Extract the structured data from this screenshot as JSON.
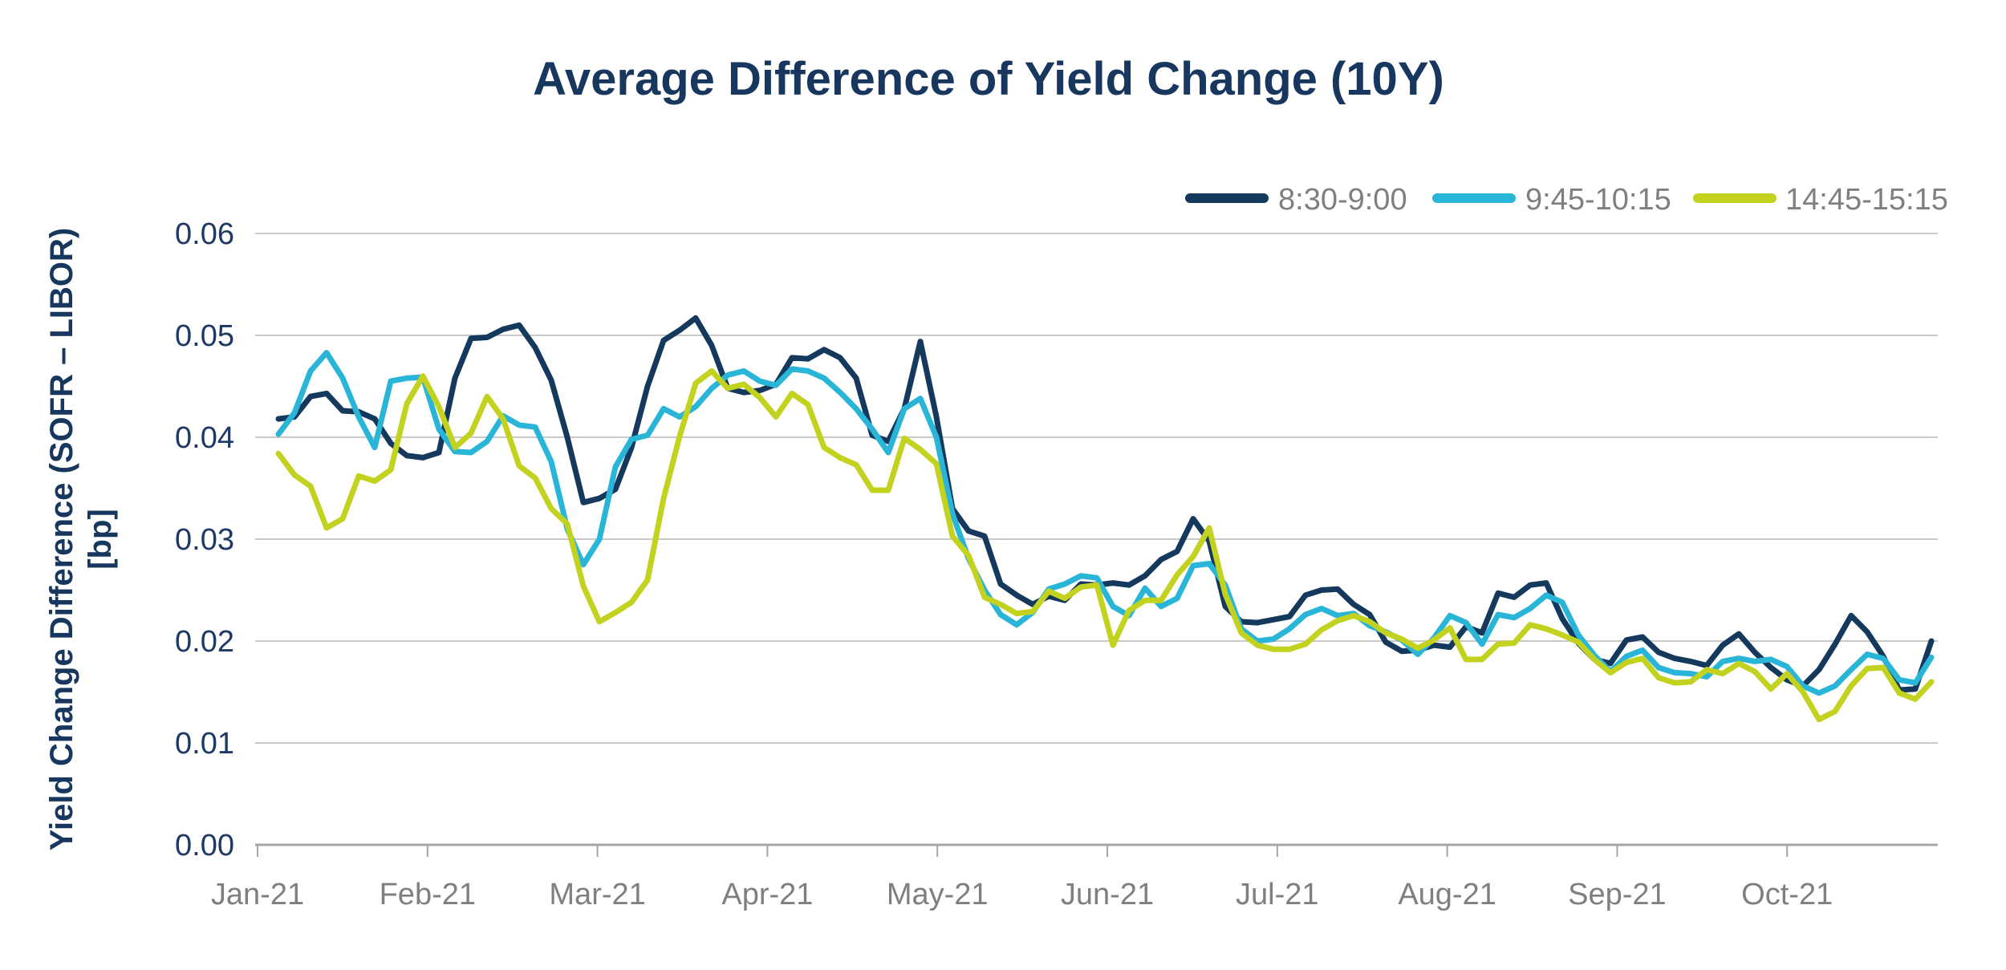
{
  "title": "Average Difference of Yield Change (10Y)",
  "y_axis": {
    "label_line1": "Yield Change Difference (SOFR – LIBOR)",
    "label_line2": "[bp]",
    "tick_labels": [
      "0.06",
      "0.05",
      "0.04",
      "0.03",
      "0.02",
      "0.01",
      "0.00"
    ]
  },
  "x_axis": {
    "tick_labels": [
      "Jan-21",
      "Feb-21",
      "Mar-21",
      "Apr-21",
      "May-21",
      "Jun-21",
      "Jul-21",
      "Aug-21",
      "Sep-21",
      "Oct-21"
    ]
  },
  "colors": {
    "title": "#17375E",
    "y_tick": "#1F3864",
    "x_tick": "#7F7F7F",
    "legend_text": "#7F7F7F",
    "gridline": "#C9C9C9",
    "axis_line": "#A6A6A6",
    "background": "#FFFFFF"
  },
  "chart_data": {
    "type": "line",
    "title": "Average Difference of Yield Change (10Y)",
    "xlabel": "",
    "ylabel": "Yield Change Difference (SOFR – LIBOR) [bp]",
    "ylim": [
      0,
      0.06
    ],
    "ytick_step": 0.01,
    "grid": "horizontal",
    "legend_position": "top-right",
    "categories": [
      "Jan-21",
      "Feb-21",
      "Mar-21",
      "Apr-21",
      "May-21",
      "Jun-21",
      "Jul-21",
      "Aug-21",
      "Sep-21",
      "Oct-21"
    ],
    "series": [
      {
        "name": "8:30-9:00",
        "color": "#14395D",
        "values": [
          0.0418,
          0.042,
          0.044,
          0.0443,
          0.0426,
          0.0425,
          0.0418,
          0.0394,
          0.0382,
          0.038,
          0.0385,
          0.0458,
          0.0497,
          0.0498,
          0.0506,
          0.051,
          0.0488,
          0.0456,
          0.04,
          0.0336,
          0.034,
          0.0349,
          0.039,
          0.045,
          0.0495,
          0.0505,
          0.0517,
          0.049,
          0.0448,
          0.0444,
          0.0446,
          0.0452,
          0.0478,
          0.0477,
          0.0486,
          0.0478,
          0.0458,
          0.0402,
          0.0396,
          0.0428,
          0.0494,
          0.042,
          0.033,
          0.0308,
          0.0303,
          0.0256,
          0.0245,
          0.0236,
          0.0244,
          0.024,
          0.0256,
          0.0255,
          0.0257,
          0.0255,
          0.0264,
          0.028,
          0.0288,
          0.032,
          0.0298,
          0.0234,
          0.0219,
          0.0218,
          0.0221,
          0.0224,
          0.0245,
          0.025,
          0.0251,
          0.0236,
          0.0226,
          0.0199,
          0.019,
          0.0191,
          0.0196,
          0.0194,
          0.0214,
          0.0208,
          0.0247,
          0.0243,
          0.0255,
          0.0257,
          0.0222,
          0.0198,
          0.0182,
          0.0178,
          0.0201,
          0.0204,
          0.0189,
          0.0183,
          0.018,
          0.0176,
          0.0196,
          0.0207,
          0.0189,
          0.0174,
          0.0162,
          0.0156,
          0.0172,
          0.0197,
          0.0225,
          0.0209,
          0.0185,
          0.0152,
          0.0153,
          0.02
        ]
      },
      {
        "name": "9:45-10:15",
        "color": "#29B5D8",
        "values": [
          0.0403,
          0.0424,
          0.0465,
          0.0483,
          0.0458,
          0.042,
          0.039,
          0.0455,
          0.0458,
          0.0459,
          0.0408,
          0.0386,
          0.0385,
          0.0396,
          0.0421,
          0.0412,
          0.041,
          0.0376,
          0.031,
          0.0275,
          0.03,
          0.0371,
          0.0398,
          0.0402,
          0.0428,
          0.042,
          0.043,
          0.0448,
          0.0461,
          0.0465,
          0.0455,
          0.0451,
          0.0467,
          0.0465,
          0.0458,
          0.0444,
          0.0428,
          0.0408,
          0.0385,
          0.0428,
          0.0438,
          0.04,
          0.0325,
          0.0281,
          0.025,
          0.0226,
          0.0216,
          0.0228,
          0.0251,
          0.0256,
          0.0264,
          0.0262,
          0.0234,
          0.0225,
          0.0252,
          0.0234,
          0.0242,
          0.0274,
          0.0276,
          0.0255,
          0.0212,
          0.02,
          0.0202,
          0.0212,
          0.0226,
          0.0232,
          0.0225,
          0.0227,
          0.0215,
          0.0209,
          0.0201,
          0.0187,
          0.0203,
          0.0225,
          0.0218,
          0.0197,
          0.0226,
          0.0223,
          0.0232,
          0.0245,
          0.0238,
          0.0206,
          0.0186,
          0.017,
          0.0185,
          0.0191,
          0.0174,
          0.0169,
          0.0168,
          0.0165,
          0.018,
          0.0183,
          0.018,
          0.0182,
          0.0175,
          0.0156,
          0.0149,
          0.0156,
          0.0172,
          0.0187,
          0.0183,
          0.0162,
          0.0159,
          0.0184
        ]
      },
      {
        "name": "14:45-15:15",
        "color": "#C3D21F",
        "values": [
          0.0384,
          0.0363,
          0.0352,
          0.0311,
          0.032,
          0.0362,
          0.0357,
          0.0368,
          0.0433,
          0.046,
          0.043,
          0.039,
          0.0404,
          0.044,
          0.0418,
          0.0372,
          0.036,
          0.033,
          0.0315,
          0.0254,
          0.0219,
          0.0228,
          0.0238,
          0.026,
          0.034,
          0.0401,
          0.0453,
          0.0465,
          0.0448,
          0.0452,
          0.0439,
          0.042,
          0.0443,
          0.0432,
          0.039,
          0.038,
          0.0373,
          0.0348,
          0.0348,
          0.0399,
          0.0388,
          0.0374,
          0.0303,
          0.0284,
          0.0243,
          0.0236,
          0.0227,
          0.0229,
          0.0249,
          0.0242,
          0.0253,
          0.0255,
          0.0196,
          0.023,
          0.024,
          0.024,
          0.0265,
          0.0283,
          0.0311,
          0.0246,
          0.0208,
          0.0196,
          0.0192,
          0.0192,
          0.0197,
          0.0211,
          0.022,
          0.0225,
          0.0219,
          0.0208,
          0.0202,
          0.0193,
          0.0201,
          0.0213,
          0.0182,
          0.0182,
          0.0197,
          0.0198,
          0.0216,
          0.0212,
          0.0206,
          0.0199,
          0.0182,
          0.0169,
          0.0179,
          0.0183,
          0.0164,
          0.0159,
          0.016,
          0.0172,
          0.0168,
          0.0178,
          0.017,
          0.0153,
          0.0168,
          0.015,
          0.0123,
          0.0131,
          0.0156,
          0.0173,
          0.0174,
          0.0149,
          0.0143,
          0.016
        ]
      }
    ]
  }
}
